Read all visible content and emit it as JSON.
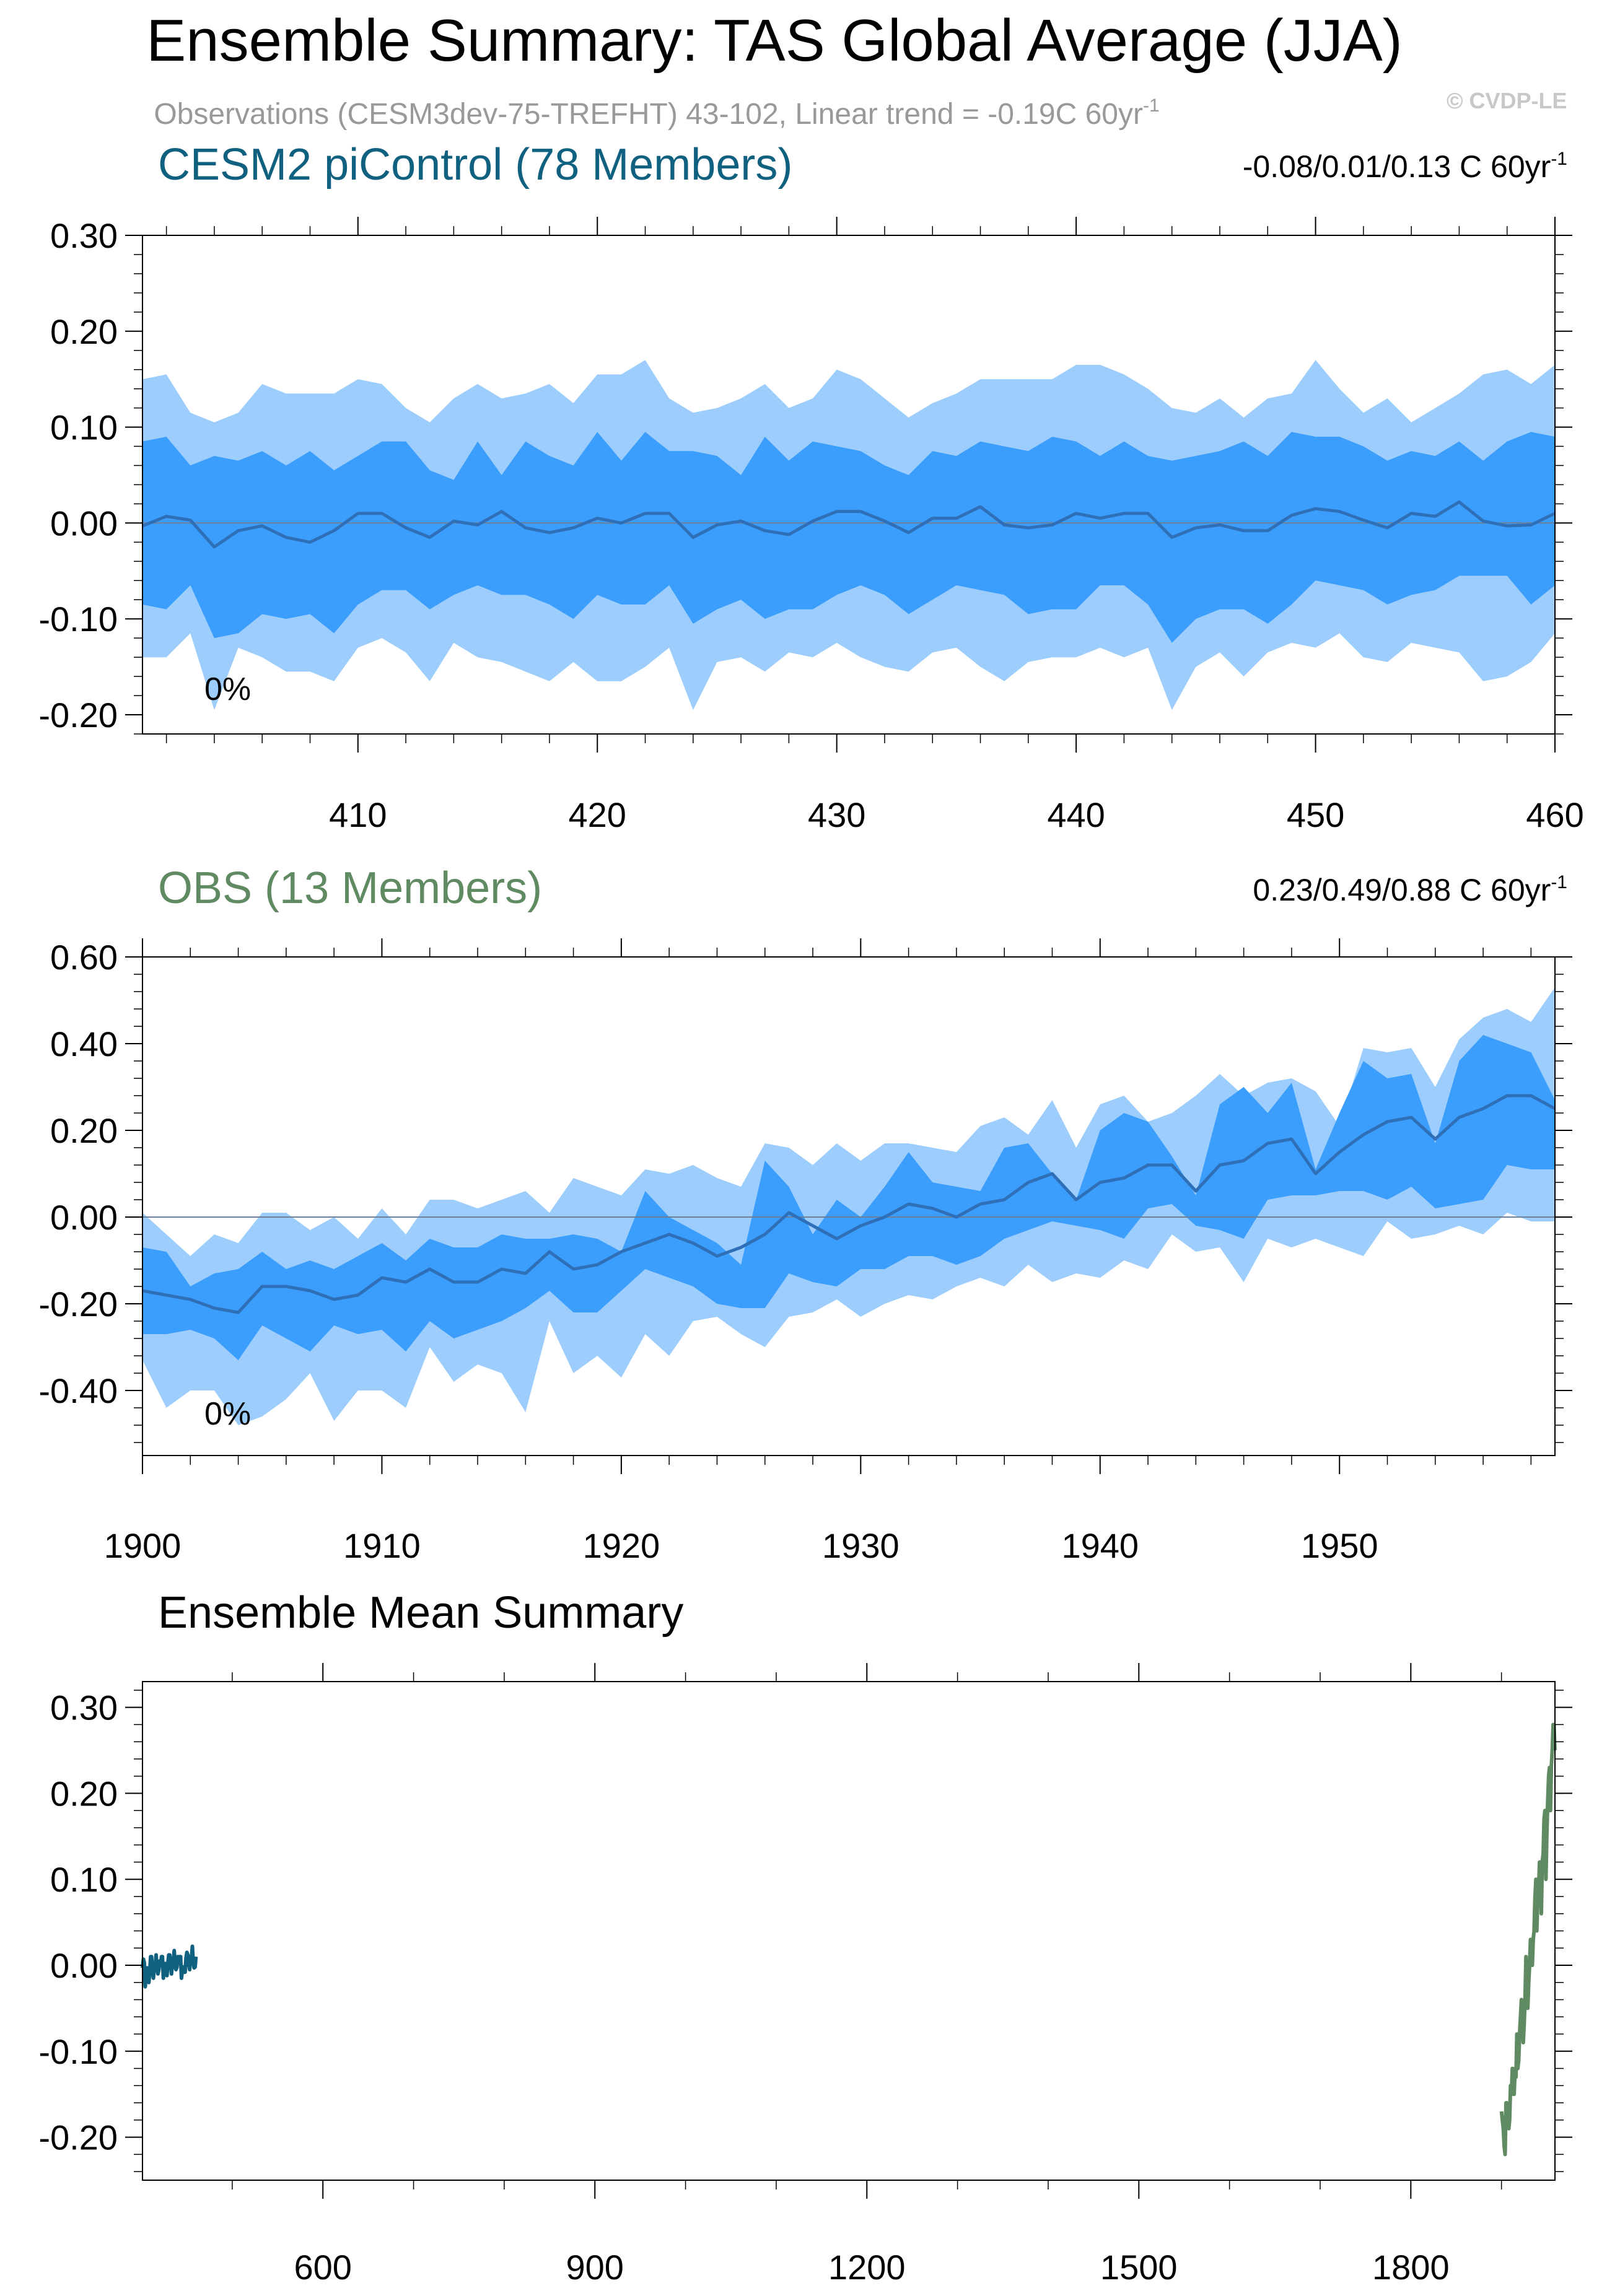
{
  "page": {
    "title": "Ensemble Summary: TAS Global Average (JJA)",
    "subtitle": "Observations (CESM3dev-75-TREFHT) 43-102, Linear trend = -0.19C 60yr",
    "subtitle_sup": "-1",
    "watermark": "© CVDP-LE"
  },
  "colors": {
    "outer_band": "#9ccdfc",
    "inner_band": "#3b9efc",
    "mean_line": "#2f6fb8",
    "model_title": "#10607f",
    "obs_title": "#608a62",
    "subtitle": "#999999",
    "watermark": "#c8c8c8"
  },
  "chart_data": [
    {
      "type": "area",
      "title": "CESM2 piControl (78 Members)",
      "trend_text": "-0.08/0.01/0.13 C 60yr",
      "trend_sup": "-1",
      "annotation": "0%",
      "xlim": [
        401,
        460
      ],
      "ylim": [
        -0.22,
        0.3
      ],
      "xticks": [
        410,
        420,
        430,
        440,
        450,
        460
      ],
      "yticks": [
        -0.2,
        -0.1,
        0.0,
        0.1,
        0.2,
        0.3
      ],
      "ytick_labels": [
        "-0.20",
        "-0.10",
        "0.00",
        "0.10",
        "0.20",
        "0.30"
      ],
      "x": [
        401,
        402,
        403,
        404,
        405,
        406,
        407,
        408,
        409,
        410,
        411,
        412,
        413,
        414,
        415,
        416,
        417,
        418,
        419,
        420,
        421,
        422,
        423,
        424,
        425,
        426,
        427,
        428,
        429,
        430,
        431,
        432,
        433,
        434,
        435,
        436,
        437,
        438,
        439,
        440,
        441,
        442,
        443,
        444,
        445,
        446,
        447,
        448,
        449,
        450,
        451,
        452,
        453,
        454,
        455,
        456,
        457,
        458,
        459,
        460
      ],
      "outer_upper": [
        0.15,
        0.155,
        0.115,
        0.105,
        0.115,
        0.145,
        0.135,
        0.135,
        0.135,
        0.15,
        0.145,
        0.12,
        0.105,
        0.13,
        0.145,
        0.13,
        0.135,
        0.145,
        0.125,
        0.155,
        0.155,
        0.17,
        0.13,
        0.115,
        0.12,
        0.13,
        0.145,
        0.12,
        0.13,
        0.16,
        0.15,
        0.13,
        0.11,
        0.125,
        0.135,
        0.15,
        0.15,
        0.15,
        0.15,
        0.165,
        0.165,
        0.155,
        0.14,
        0.12,
        0.115,
        0.13,
        0.11,
        0.13,
        0.135,
        0.17,
        0.14,
        0.115,
        0.13,
        0.105,
        0.12,
        0.135,
        0.155,
        0.16,
        0.145,
        0.165
      ],
      "inner_upper": [
        0.085,
        0.09,
        0.06,
        0.07,
        0.065,
        0.075,
        0.06,
        0.075,
        0.055,
        0.07,
        0.085,
        0.085,
        0.055,
        0.045,
        0.085,
        0.05,
        0.085,
        0.07,
        0.06,
        0.095,
        0.065,
        0.095,
        0.075,
        0.075,
        0.07,
        0.05,
        0.09,
        0.065,
        0.085,
        0.08,
        0.075,
        0.06,
        0.05,
        0.075,
        0.07,
        0.085,
        0.08,
        0.075,
        0.09,
        0.085,
        0.07,
        0.085,
        0.07,
        0.065,
        0.07,
        0.075,
        0.085,
        0.07,
        0.095,
        0.09,
        0.09,
        0.08,
        0.065,
        0.075,
        0.07,
        0.085,
        0.065,
        0.085,
        0.095,
        0.09
      ],
      "mean": [
        -0.003,
        0.007,
        0.003,
        -0.025,
        -0.008,
        -0.003,
        -0.015,
        -0.02,
        -0.008,
        0.01,
        0.01,
        -0.005,
        -0.015,
        0.002,
        -0.002,
        0.012,
        -0.005,
        -0.01,
        -0.005,
        0.005,
        0.0,
        0.01,
        0.01,
        -0.015,
        -0.002,
        0.002,
        -0.008,
        -0.012,
        0.002,
        0.012,
        0.012,
        0.002,
        -0.01,
        0.005,
        0.005,
        0.017,
        -0.002,
        -0.005,
        -0.002,
        0.01,
        0.005,
        0.01,
        0.01,
        -0.015,
        -0.005,
        -0.002,
        -0.008,
        -0.008,
        0.008,
        0.015,
        0.012,
        0.003,
        -0.005,
        0.01,
        0.007,
        0.022,
        0.002,
        -0.003,
        -0.002,
        0.01
      ],
      "inner_lower": [
        -0.085,
        -0.09,
        -0.065,
        -0.12,
        -0.115,
        -0.095,
        -0.1,
        -0.095,
        -0.115,
        -0.085,
        -0.07,
        -0.07,
        -0.09,
        -0.075,
        -0.065,
        -0.075,
        -0.075,
        -0.085,
        -0.1,
        -0.075,
        -0.085,
        -0.085,
        -0.065,
        -0.105,
        -0.09,
        -0.08,
        -0.1,
        -0.09,
        -0.09,
        -0.075,
        -0.065,
        -0.075,
        -0.095,
        -0.08,
        -0.065,
        -0.07,
        -0.075,
        -0.095,
        -0.09,
        -0.09,
        -0.065,
        -0.065,
        -0.085,
        -0.125,
        -0.1,
        -0.09,
        -0.09,
        -0.105,
        -0.085,
        -0.06,
        -0.065,
        -0.07,
        -0.085,
        -0.075,
        -0.07,
        -0.055,
        -0.055,
        -0.055,
        -0.085,
        -0.065
      ],
      "outer_lower": [
        -0.14,
        -0.14,
        -0.115,
        -0.195,
        -0.13,
        -0.14,
        -0.155,
        -0.155,
        -0.165,
        -0.13,
        -0.12,
        -0.135,
        -0.165,
        -0.125,
        -0.14,
        -0.145,
        -0.155,
        -0.165,
        -0.145,
        -0.165,
        -0.165,
        -0.15,
        -0.13,
        -0.195,
        -0.145,
        -0.14,
        -0.155,
        -0.135,
        -0.14,
        -0.125,
        -0.14,
        -0.15,
        -0.155,
        -0.135,
        -0.13,
        -0.15,
        -0.165,
        -0.145,
        -0.14,
        -0.14,
        -0.13,
        -0.14,
        -0.13,
        -0.195,
        -0.15,
        -0.135,
        -0.16,
        -0.135,
        -0.125,
        -0.13,
        -0.115,
        -0.14,
        -0.145,
        -0.125,
        -0.13,
        -0.135,
        -0.165,
        -0.16,
        -0.145,
        -0.115
      ]
    },
    {
      "type": "area",
      "title": "OBS (13 Members)",
      "trend_text": "0.23/0.49/0.88 C 60yr",
      "trend_sup": "-1",
      "annotation": "0%",
      "xlim": [
        1900,
        1959
      ],
      "ylim": [
        -0.55,
        0.6
      ],
      "xticks": [
        1900,
        1910,
        1920,
        1930,
        1940,
        1950
      ],
      "yticks": [
        -0.4,
        -0.2,
        0.0,
        0.2,
        0.4,
        0.6
      ],
      "ytick_labels": [
        "-0.40",
        "-0.20",
        "0.00",
        "0.20",
        "0.40",
        "0.60"
      ],
      "x": [
        1900,
        1901,
        1902,
        1903,
        1904,
        1905,
        1906,
        1907,
        1908,
        1909,
        1910,
        1911,
        1912,
        1913,
        1914,
        1915,
        1916,
        1917,
        1918,
        1919,
        1920,
        1921,
        1922,
        1923,
        1924,
        1925,
        1926,
        1927,
        1928,
        1929,
        1930,
        1931,
        1932,
        1933,
        1934,
        1935,
        1936,
        1937,
        1938,
        1939,
        1940,
        1941,
        1942,
        1943,
        1944,
        1945,
        1946,
        1947,
        1948,
        1949,
        1950,
        1951,
        1952,
        1953,
        1954,
        1955,
        1956,
        1957,
        1958,
        1959
      ],
      "outer_upper": [
        0.01,
        -0.04,
        -0.09,
        -0.04,
        -0.06,
        0.01,
        0.01,
        -0.03,
        0.0,
        -0.05,
        0.02,
        -0.04,
        0.04,
        0.04,
        0.02,
        0.04,
        0.06,
        0.01,
        0.09,
        0.07,
        0.05,
        0.11,
        0.1,
        0.12,
        0.09,
        0.07,
        0.17,
        0.16,
        0.12,
        0.17,
        0.13,
        0.17,
        0.17,
        0.16,
        0.15,
        0.21,
        0.23,
        0.19,
        0.27,
        0.16,
        0.26,
        0.28,
        0.22,
        0.24,
        0.28,
        0.33,
        0.28,
        0.31,
        0.32,
        0.29,
        0.21,
        0.39,
        0.38,
        0.39,
        0.3,
        0.41,
        0.46,
        0.48,
        0.45,
        0.53
      ],
      "inner_upper": [
        -0.07,
        -0.08,
        -0.16,
        -0.13,
        -0.12,
        -0.08,
        -0.12,
        -0.1,
        -0.12,
        -0.09,
        -0.06,
        -0.1,
        -0.05,
        -0.07,
        -0.07,
        -0.04,
        -0.05,
        -0.05,
        -0.04,
        -0.05,
        -0.08,
        0.06,
        0.0,
        -0.03,
        -0.06,
        -0.11,
        0.13,
        0.07,
        -0.04,
        0.04,
        0.0,
        0.07,
        0.15,
        0.08,
        0.07,
        0.06,
        0.16,
        0.17,
        0.1,
        0.04,
        0.2,
        0.24,
        0.22,
        0.14,
        0.05,
        0.26,
        0.3,
        0.24,
        0.31,
        0.11,
        0.24,
        0.36,
        0.32,
        0.33,
        0.17,
        0.36,
        0.42,
        0.4,
        0.38,
        0.27
      ],
      "mean": [
        -0.17,
        -0.18,
        -0.19,
        -0.21,
        -0.22,
        -0.16,
        -0.16,
        -0.17,
        -0.19,
        -0.18,
        -0.14,
        -0.15,
        -0.12,
        -0.15,
        -0.15,
        -0.12,
        -0.13,
        -0.08,
        -0.12,
        -0.11,
        -0.08,
        -0.06,
        -0.04,
        -0.06,
        -0.09,
        -0.07,
        -0.04,
        0.01,
        -0.02,
        -0.05,
        -0.02,
        0.0,
        0.03,
        0.02,
        0.0,
        0.03,
        0.04,
        0.08,
        0.1,
        0.04,
        0.08,
        0.09,
        0.12,
        0.12,
        0.06,
        0.12,
        0.13,
        0.17,
        0.18,
        0.1,
        0.15,
        0.19,
        0.22,
        0.23,
        0.18,
        0.23,
        0.25,
        0.28,
        0.28,
        0.25
      ],
      "inner_lower": [
        -0.27,
        -0.27,
        -0.26,
        -0.28,
        -0.33,
        -0.25,
        -0.28,
        -0.31,
        -0.25,
        -0.27,
        -0.26,
        -0.31,
        -0.24,
        -0.28,
        -0.26,
        -0.24,
        -0.21,
        -0.17,
        -0.22,
        -0.22,
        -0.17,
        -0.12,
        -0.14,
        -0.16,
        -0.2,
        -0.21,
        -0.21,
        -0.13,
        -0.15,
        -0.16,
        -0.12,
        -0.12,
        -0.09,
        -0.09,
        -0.11,
        -0.09,
        -0.05,
        -0.03,
        -0.01,
        -0.02,
        -0.03,
        -0.05,
        0.02,
        0.03,
        -0.02,
        -0.03,
        -0.05,
        0.04,
        0.05,
        0.05,
        0.06,
        0.06,
        0.04,
        0.07,
        0.02,
        0.03,
        0.04,
        0.12,
        0.11,
        0.11
      ],
      "outer_lower": [
        -0.33,
        -0.44,
        -0.4,
        -0.4,
        -0.48,
        -0.46,
        -0.42,
        -0.36,
        -0.47,
        -0.4,
        -0.4,
        -0.44,
        -0.3,
        -0.38,
        -0.34,
        -0.36,
        -0.45,
        -0.24,
        -0.36,
        -0.32,
        -0.37,
        -0.27,
        -0.32,
        -0.24,
        -0.23,
        -0.27,
        -0.3,
        -0.23,
        -0.22,
        -0.19,
        -0.23,
        -0.2,
        -0.18,
        -0.19,
        -0.16,
        -0.14,
        -0.16,
        -0.11,
        -0.15,
        -0.13,
        -0.14,
        -0.1,
        -0.12,
        -0.04,
        -0.08,
        -0.07,
        -0.15,
        -0.05,
        -0.07,
        -0.05,
        -0.07,
        -0.09,
        -0.01,
        -0.05,
        -0.04,
        -0.02,
        -0.04,
        0.01,
        -0.01,
        -0.01
      ]
    },
    {
      "type": "line",
      "title": "Ensemble Mean Summary",
      "xlim": [
        401,
        1959
      ],
      "ylim": [
        -0.25,
        0.33
      ],
      "xticks": [
        600,
        900,
        1200,
        1500,
        1800
      ],
      "yticks": [
        -0.2,
        -0.1,
        0.0,
        0.1,
        0.2,
        0.3
      ],
      "ytick_labels": [
        "-0.20",
        "-0.10",
        "0.00",
        "0.10",
        "0.20",
        "0.30"
      ],
      "series": [
        {
          "series_ref": 0,
          "color": "#10607f"
        },
        {
          "series_ref": 1,
          "color": "#608a62"
        }
      ]
    }
  ]
}
